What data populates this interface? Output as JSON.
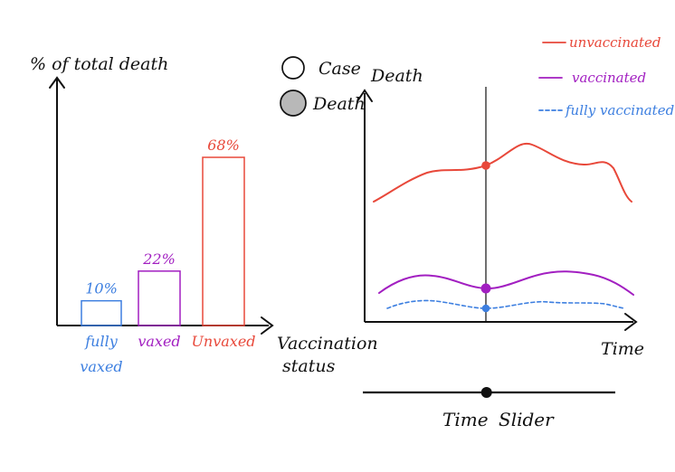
{
  "colors": {
    "ink": "#111111",
    "fully_vaxed": "#3d7fe0",
    "vaxed": "#a21fc1",
    "unvaxed": "#e8483a",
    "death_toggle_fill": "#b8b8b8"
  },
  "left_chart": {
    "ylabel": "% of total death",
    "xlabel_line1": "Vaccination",
    "xlabel_line2": "status",
    "bars": [
      {
        "label_line1": "fully",
        "label_line2": "vaxed",
        "value": 10,
        "value_label": "10%"
      },
      {
        "label_line1": "vaxed",
        "label_line2": "",
        "value": 22,
        "value_label": "22%"
      },
      {
        "label_line1": "Unvaxed",
        "label_line2": "",
        "value": 68,
        "value_label": "68%"
      }
    ]
  },
  "toggle": {
    "case_label": "Case",
    "death_label": "Death",
    "selected": "death"
  },
  "right_chart": {
    "ylabel": "Death",
    "xlabel": "Time",
    "legend": [
      {
        "name": "unvaccinated",
        "style": "solid",
        "color": "#e8483a"
      },
      {
        "name": "vaccinated",
        "style": "solid",
        "color": "#a21fc1"
      },
      {
        "name": "fully vaccinated",
        "style": "dashed",
        "color": "#3d7fe0"
      }
    ]
  },
  "slider": {
    "label_left": "Time",
    "label_right": "Slider",
    "position": 0.49
  },
  "chart_data": {
    "type": "bar",
    "categories": [
      "fully vaxed",
      "vaxed",
      "Unvaxed"
    ],
    "values": [
      10,
      22,
      68
    ],
    "xlabel": "Vaccination status",
    "ylabel": "% of total death"
  }
}
